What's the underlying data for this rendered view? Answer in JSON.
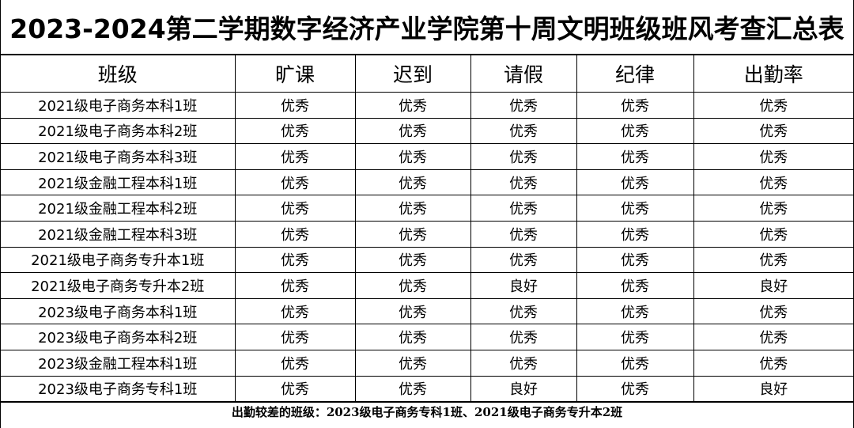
{
  "title": "2023-2024第二学期数字经济产业学院第十周文明班级班风考查汇总表",
  "headers": [
    "班级",
    "旷课",
    "迟到",
    "请假",
    "纪律",
    "出勤率"
  ],
  "rows": [
    [
      "2021级电子商务本科1班",
      "优秀",
      "优秀",
      "优秀",
      "优秀",
      "优秀"
    ],
    [
      "2021级电子商务本科2班",
      "优秀",
      "优秀",
      "优秀",
      "优秀",
      "优秀"
    ],
    [
      "2021级电子商务本科3班",
      "优秀",
      "优秀",
      "优秀",
      "优秀",
      "优秀"
    ],
    [
      "2021级金融工程本科1班",
      "优秀",
      "优秀",
      "优秀",
      "优秀",
      "优秀"
    ],
    [
      "2021级金融工程本科2班",
      "优秀",
      "优秀",
      "优秀",
      "优秀",
      "优秀"
    ],
    [
      "2021级金融工程本科3班",
      "优秀",
      "优秀",
      "优秀",
      "优秀",
      "优秀"
    ],
    [
      "2021级电子商务专升本1班",
      "优秀",
      "优秀",
      "优秀",
      "优秀",
      "优秀"
    ],
    [
      "2021级电子商务专升本2班",
      "优秀",
      "优秀",
      "良好",
      "优秀",
      "良好"
    ],
    [
      "2023级电子商务本科1班",
      "优秀",
      "优秀",
      "优秀",
      "优秀",
      "优秀"
    ],
    [
      "2023级电子商务本科2班",
      "优秀",
      "优秀",
      "优秀",
      "优秀",
      "优秀"
    ],
    [
      "2023级金融工程本科1班",
      "优秀",
      "优秀",
      "优秀",
      "优秀",
      "优秀"
    ],
    [
      "2023级电子商务专科1班",
      "优秀",
      "优秀",
      "良好",
      "优秀",
      "良好"
    ]
  ],
  "footer": "出勤较差的班级：2023级电子商务专科1班、2021级电子商务专升本2班"
}
